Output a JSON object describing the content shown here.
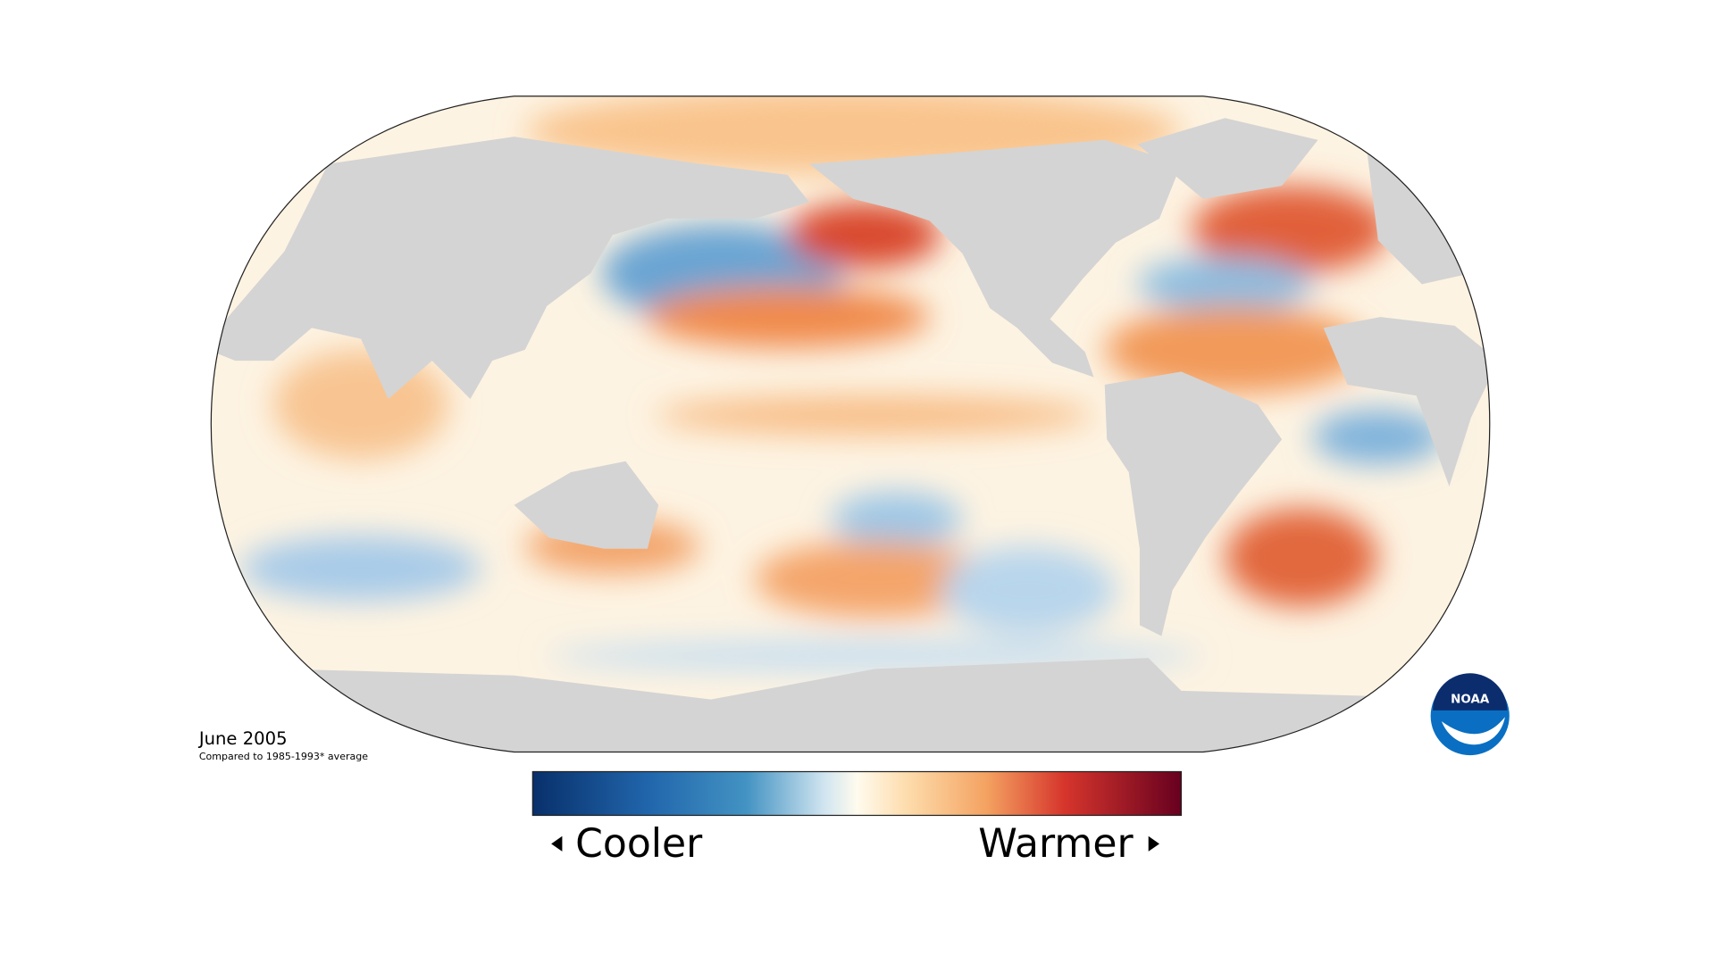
{
  "map": {
    "date": "June 2005",
    "note": "Compared to 1985-1993* average"
  },
  "legend": {
    "low": "Cooler",
    "high": "Warmer"
  },
  "logo": "NOAA"
}
